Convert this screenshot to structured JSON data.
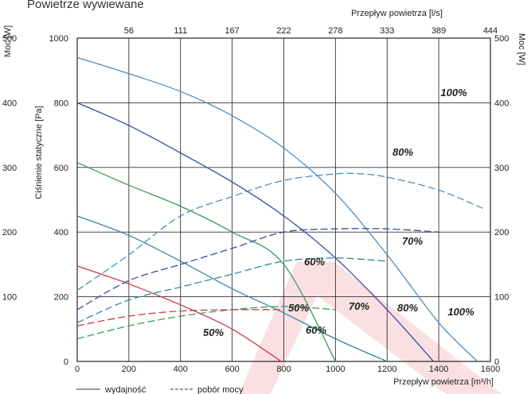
{
  "chart_data": {
    "type": "line",
    "title": "Powietrze wywiewane",
    "x_axis": {
      "label": "Przepływ powietrza [m³/h]",
      "range": [
        0,
        1600
      ],
      "ticks": [
        0,
        200,
        400,
        600,
        800,
        1000,
        1200,
        1400,
        1600
      ]
    },
    "x2_axis": {
      "label": "Przepływ powietrza [l/s]",
      "ticks": [
        "56",
        "111",
        "167",
        "222",
        "278",
        "333",
        "389",
        "444"
      ]
    },
    "y_axis": {
      "label": "Ciśnienie statyczne [Pa]",
      "range": [
        0,
        1000
      ],
      "ticks": [
        0,
        200,
        400,
        600,
        800,
        1000
      ]
    },
    "y2_axis": {
      "label": "Moc [W]",
      "range": [
        0,
        500
      ],
      "ticks": [
        0,
        100,
        200,
        300,
        400,
        500
      ]
    },
    "y_left_outer_label": "Moc [W]",
    "y_left_outer_ticks": [
      "500",
      "400",
      "300",
      "200",
      "100"
    ],
    "legend": {
      "placement": "bottom-left",
      "items": [
        {
          "label": "wydajność",
          "style": "solid"
        },
        {
          "label": "pobór mocy",
          "style": "dashed"
        }
      ]
    },
    "grid": true,
    "series": [
      {
        "name": "100%",
        "kind": "wydajność",
        "color": "#4a8fc4",
        "x": [
          0,
          200,
          400,
          600,
          800,
          1000,
          1200,
          1400,
          1550
        ],
        "y": [
          940,
          890,
          835,
          760,
          660,
          520,
          330,
          120,
          0
        ]
      },
      {
        "name": "80%",
        "kind": "wydajność",
        "color": "#3a4a9a",
        "x": [
          0,
          200,
          400,
          600,
          800,
          1000,
          1200,
          1380
        ],
        "y": [
          800,
          730,
          645,
          555,
          450,
          320,
          160,
          0
        ]
      },
      {
        "name": "70%",
        "kind": "wydajność",
        "color": "#2e8a9a",
        "x": [
          0,
          200,
          400,
          600,
          800,
          1000,
          1200
        ],
        "y": [
          450,
          390,
          310,
          225,
          150,
          70,
          0
        ]
      },
      {
        "name": "60%",
        "kind": "wydajność",
        "color": "#3a9a5a",
        "x": [
          0,
          200,
          400,
          600,
          800,
          1000
        ],
        "y": [
          615,
          545,
          480,
          400,
          300,
          0
        ]
      },
      {
        "name": "50%",
        "kind": "wydajność",
        "color": "#c83a48",
        "x": [
          0,
          200,
          400,
          600,
          790
        ],
        "y": [
          295,
          240,
          175,
          100,
          0
        ]
      },
      {
        "name": "100%",
        "kind": "pobór mocy",
        "color": "#4a8fc4",
        "x": [
          0,
          200,
          400,
          600,
          800,
          1000,
          1100,
          1200,
          1400,
          1580
        ],
        "y": [
          110,
          165,
          225,
          255,
          280,
          290,
          290,
          285,
          265,
          235
        ]
      },
      {
        "name": "80%",
        "kind": "pobór mocy",
        "color": "#3a4a9a",
        "x": [
          0,
          200,
          400,
          600,
          800,
          1000,
          1200,
          1400
        ],
        "y": [
          80,
          125,
          150,
          175,
          200,
          205,
          205,
          200
        ]
      },
      {
        "name": "70%",
        "kind": "pobór mocy",
        "color": "#2e8a9a",
        "x": [
          0,
          200,
          400,
          600,
          800,
          1000,
          1200
        ],
        "y": [
          60,
          95,
          115,
          135,
          155,
          160,
          155
        ]
      },
      {
        "name": "60%",
        "kind": "pobór mocy",
        "color": "#3a9a5a",
        "x": [
          0,
          200,
          400,
          600,
          800,
          1000
        ],
        "y": [
          35,
          55,
          70,
          80,
          85,
          80
        ]
      },
      {
        "name": "50%",
        "kind": "pobór mocy",
        "color": "#c83a48",
        "x": [
          0,
          200,
          400,
          600,
          800
        ],
        "y": [
          55,
          70,
          78,
          80,
          80
        ]
      }
    ],
    "annotations": [
      "100%",
      "80%",
      "70%",
      "60%",
      "50%",
      "100%",
      "80%",
      "70%",
      "60%",
      "50%"
    ]
  }
}
